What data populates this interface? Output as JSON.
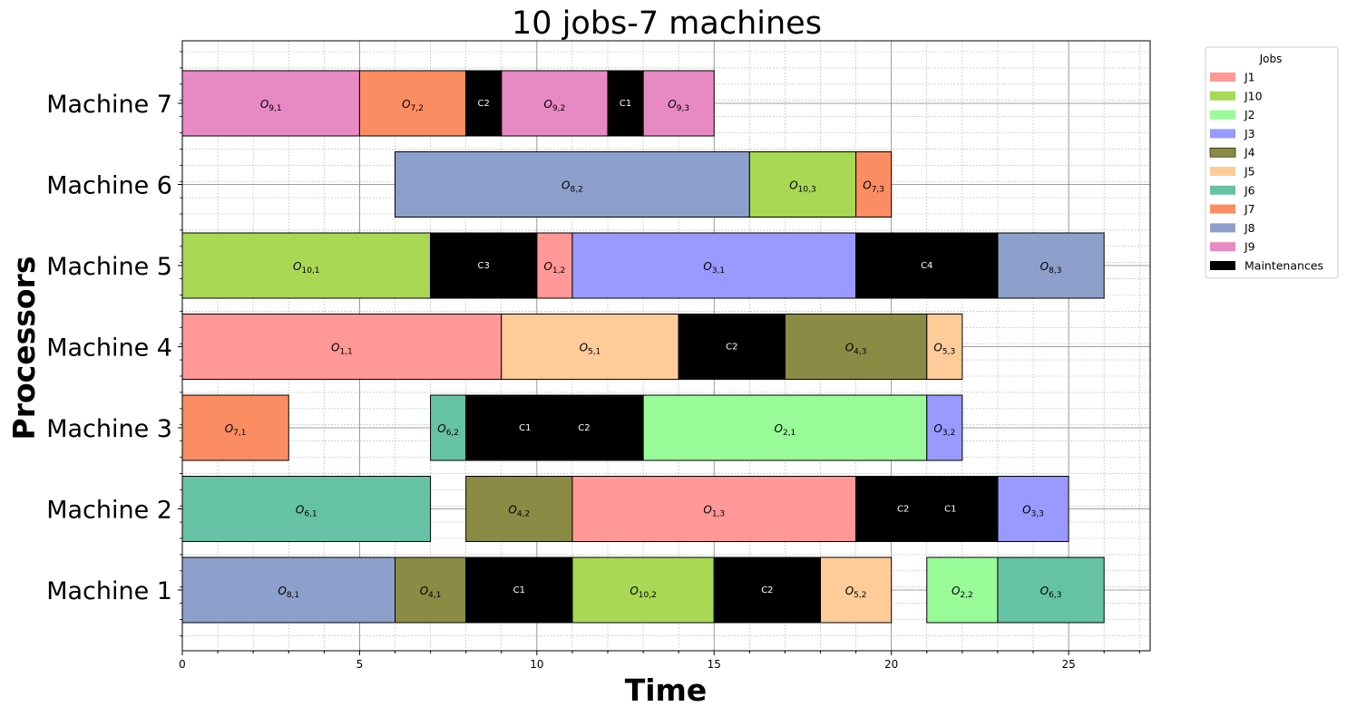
{
  "chart_data": {
    "type": "gantt",
    "title": "10 jobs-7 machines",
    "xlabel": "Time",
    "ylabel": "Processors",
    "xlim": [
      0,
      27.3
    ],
    "xticks": [
      0,
      5,
      10,
      15,
      20,
      25
    ],
    "grid": true,
    "legend_placement": "outside-top-right",
    "legend_title": "Jobs",
    "machines": [
      "Machine 1",
      "Machine 2",
      "Machine 3",
      "Machine 4",
      "Machine 5",
      "Machine 6",
      "Machine 7"
    ],
    "jobs": [
      {
        "name": "J1",
        "color": "#ff9896"
      },
      {
        "name": "J10",
        "color": "#a8d854"
      },
      {
        "name": "J2",
        "color": "#98fb98"
      },
      {
        "name": "J3",
        "color": "#9999ff"
      },
      {
        "name": "J4",
        "color": "#8b8b45"
      },
      {
        "name": "J5",
        "color": "#ffcc99"
      },
      {
        "name": "J6",
        "color": "#66c2a5"
      },
      {
        "name": "J7",
        "color": "#fc8d62"
      },
      {
        "name": "J8",
        "color": "#8da0cb"
      },
      {
        "name": "J9",
        "color": "#e78ac3"
      },
      {
        "name": "Maintenances",
        "color": "#000000"
      }
    ],
    "operations": [
      {
        "machine": 1,
        "job": "J8",
        "op": "8,1",
        "start": 0,
        "end": 6
      },
      {
        "machine": 1,
        "job": "J4",
        "op": "4,1",
        "start": 6,
        "end": 8
      },
      {
        "machine": 1,
        "job": "J10",
        "op": "10,2",
        "start": 11,
        "end": 15
      },
      {
        "machine": 1,
        "job": "J5",
        "op": "5,2",
        "start": 18,
        "end": 20
      },
      {
        "machine": 1,
        "job": "J2",
        "op": "2,2",
        "start": 21,
        "end": 23
      },
      {
        "machine": 1,
        "job": "J6",
        "op": "6,3",
        "start": 23,
        "end": 26
      },
      {
        "machine": 2,
        "job": "J6",
        "op": "6,1",
        "start": 0,
        "end": 7
      },
      {
        "machine": 2,
        "job": "J4",
        "op": "4,2",
        "start": 8,
        "end": 11
      },
      {
        "machine": 2,
        "job": "J1",
        "op": "1,3",
        "start": 11,
        "end": 19
      },
      {
        "machine": 2,
        "job": "J3",
        "op": "3,3",
        "start": 23,
        "end": 25
      },
      {
        "machine": 3,
        "job": "J7",
        "op": "7,1",
        "start": 0,
        "end": 3
      },
      {
        "machine": 3,
        "job": "J6",
        "op": "6,2",
        "start": 7,
        "end": 8
      },
      {
        "machine": 3,
        "job": "J2",
        "op": "2,1",
        "start": 13,
        "end": 21
      },
      {
        "machine": 3,
        "job": "J3",
        "op": "3,2",
        "start": 21,
        "end": 22
      },
      {
        "machine": 4,
        "job": "J1",
        "op": "1,1",
        "start": 0,
        "end": 9
      },
      {
        "machine": 4,
        "job": "J5",
        "op": "5,1",
        "start": 9,
        "end": 14
      },
      {
        "machine": 4,
        "job": "J4",
        "op": "4,3",
        "start": 17,
        "end": 21
      },
      {
        "machine": 4,
        "job": "J5",
        "op": "5,3",
        "start": 21,
        "end": 22
      },
      {
        "machine": 5,
        "job": "J10",
        "op": "10,1",
        "start": 0,
        "end": 7
      },
      {
        "machine": 5,
        "job": "J1",
        "op": "1,2",
        "start": 10,
        "end": 11
      },
      {
        "machine": 5,
        "job": "J3",
        "op": "3,1",
        "start": 11,
        "end": 19
      },
      {
        "machine": 5,
        "job": "J8",
        "op": "8,3",
        "start": 23,
        "end": 26
      },
      {
        "machine": 6,
        "job": "J8",
        "op": "8,2",
        "start": 6,
        "end": 16
      },
      {
        "machine": 6,
        "job": "J10",
        "op": "10,3",
        "start": 16,
        "end": 19
      },
      {
        "machine": 6,
        "job": "J7",
        "op": "7,3",
        "start": 19,
        "end": 20
      },
      {
        "machine": 7,
        "job": "J9",
        "op": "9,1",
        "start": 0,
        "end": 5
      },
      {
        "machine": 7,
        "job": "J7",
        "op": "7,2",
        "start": 5,
        "end": 8
      },
      {
        "machine": 7,
        "job": "J9",
        "op": "9,2",
        "start": 9,
        "end": 12
      },
      {
        "machine": 7,
        "job": "J9",
        "op": "9,3",
        "start": 13,
        "end": 15
      }
    ],
    "maintenances": [
      {
        "machine": 1,
        "start": 8,
        "end": 11,
        "label": "C1"
      },
      {
        "machine": 1,
        "start": 15,
        "end": 18,
        "label": "C2"
      },
      {
        "machine": 2,
        "start": 19,
        "end": 23,
        "labels": [
          "C2",
          "C1"
        ]
      },
      {
        "machine": 3,
        "start": 8,
        "end": 13,
        "labels": [
          "C1",
          "C2"
        ]
      },
      {
        "machine": 4,
        "start": 14,
        "end": 17,
        "label": "C2"
      },
      {
        "machine": 5,
        "start": 7,
        "end": 10,
        "label": "C3"
      },
      {
        "machine": 5,
        "start": 19,
        "end": 23,
        "label": "C4"
      },
      {
        "machine": 7,
        "start": 8,
        "end": 9,
        "label": "C2"
      },
      {
        "machine": 7,
        "start": 12,
        "end": 13,
        "label": "C1"
      }
    ]
  }
}
